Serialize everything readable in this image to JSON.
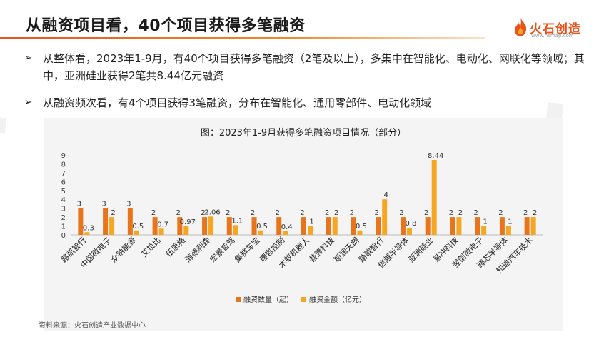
{
  "page": {
    "title": "从融资项目看，40个项目获得多笔融资",
    "logo_text": "火石创造",
    "logo_sub": "www.hsmap.com",
    "bullets": [
      {
        "arrow": "➢",
        "text": "从整体看，2023年1-9月，有40个项目获得多笔融资（2笔及以上），多集中在智能化、电动化、网联化等领域；其中，亚洲硅业获得2笔共8.44亿元融资"
      },
      {
        "arrow": "➢",
        "text": "从融资频次看，有4个项目获得3笔融资，分布在智能化、通用零部件、电动化领域"
      }
    ],
    "source": "资料来源：火石创造产业数据中心",
    "accent_color": "#e8531c"
  },
  "chart_data": {
    "type": "bar",
    "title": "图：2023年1-9月获得多笔融资项目情况（部分）",
    "categories": [
      "路凯智行",
      "中国微电子",
      "众钠能源",
      "艾拉比",
      "伍思格",
      "海德利森",
      "宏景智驾",
      "集群车宝",
      "理岩控制",
      "木蚁机器人",
      "普渡科技",
      "斯润天朗",
      "踏歌智行",
      "信越半导体",
      "亚洲硅业",
      "易冲科技",
      "翌创微电子",
      "臻芯半导体",
      "知迪汽车技术"
    ],
    "series": [
      {
        "name": "融资数量（起）",
        "color": "#e8741c",
        "values": [
          3,
          3,
          3,
          2,
          2,
          2,
          2,
          2,
          2,
          2,
          2,
          2,
          2,
          2,
          2,
          2,
          2,
          2,
          2
        ],
        "labels": [
          "3",
          "3",
          "3",
          "2",
          "2",
          "2",
          "2",
          "2",
          "2",
          "2",
          "2",
          "2",
          "2",
          "2",
          "2",
          "2",
          "2",
          "2",
          "2"
        ]
      },
      {
        "name": "融资金额（亿元）",
        "color": "#f5a623",
        "values": [
          0.3,
          2,
          0.5,
          0.7,
          0.97,
          2.06,
          1.1,
          0.5,
          0.4,
          1,
          2,
          0.5,
          4,
          0.8,
          8.44,
          2,
          1,
          1,
          2
        ],
        "labels": [
          "0.3",
          "2",
          "0.5",
          "0.7",
          "0.97",
          "2.06",
          "1.1",
          "0.5",
          "0.4",
          "1",
          "2",
          "0.5",
          "4",
          "0.8",
          "8.44",
          "2",
          "1",
          "1",
          "2"
        ]
      }
    ],
    "y_ticks": [
      "0",
      "1",
      "2",
      "3",
      "4",
      "5",
      "6",
      "7",
      "8",
      "9"
    ],
    "ylim": [
      0,
      9
    ],
    "legend_position": "bottom",
    "grid": false
  }
}
